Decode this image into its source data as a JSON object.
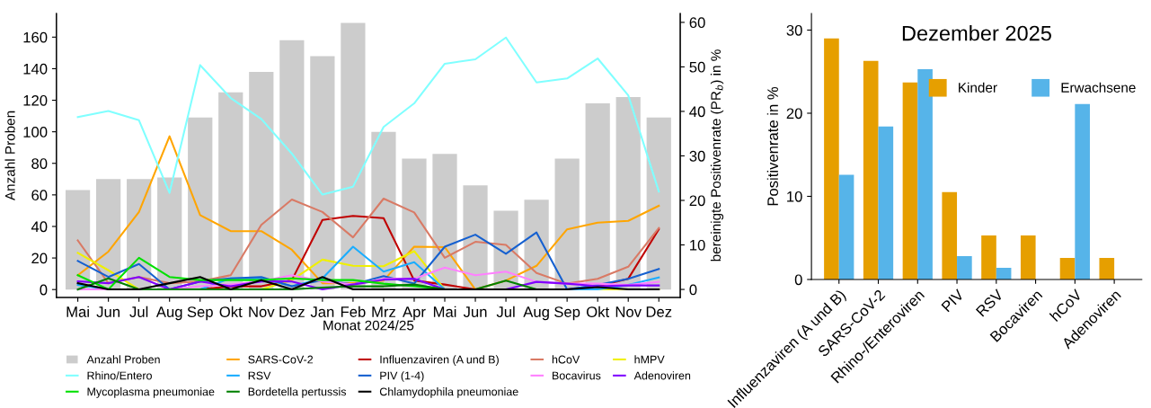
{
  "chart_data": [
    {
      "type": "bar",
      "xlabel": "Monat 2024/25",
      "ylabel": "Anzahl Proben",
      "y2label": "bereinigte Positivenrate (PR$_{b}$) in %",
      "categories": [
        "Mai",
        "Jun",
        "Jul",
        "Aug",
        "Sep",
        "Okt",
        "Nov",
        "Dez",
        "Jan",
        "Feb",
        "Mrz",
        "Apr",
        "Mai",
        "Jun",
        "Jul",
        "Aug",
        "Sep",
        "Okt",
        "Nov",
        "Dez"
      ],
      "ylim": [
        -5,
        175
      ],
      "yticks": [
        0,
        20,
        40,
        60,
        80,
        100,
        120,
        140,
        160
      ],
      "y2lim": [
        -1.8,
        62
      ],
      "y2ticks": [
        0,
        10,
        20,
        30,
        40,
        50,
        60
      ],
      "grid": false,
      "legend": "bottom",
      "series": [
        {
          "name": "Anzahl Proben",
          "type": "bar",
          "color": "#cccccc",
          "values": [
            63,
            70,
            70,
            71,
            109,
            125,
            138,
            158,
            148,
            169,
            100,
            83,
            86,
            66,
            50,
            57,
            83,
            118,
            122,
            109
          ]
        },
        {
          "name": "SARS-CoV-2",
          "type": "line",
          "axis": "y2",
          "color": "#ffa500",
          "values": [
            3.2,
            8.5,
            17.4,
            34.4,
            16.7,
            13.1,
            13.1,
            8.9,
            1.4,
            1.4,
            2.0,
            9.6,
            9.5,
            0,
            2.0,
            5.3,
            13.5,
            15.0,
            15.4,
            18.8
          ]
        },
        {
          "name": "Influenzaviren (A und B)",
          "type": "line",
          "axis": "y2",
          "color": "#c00000",
          "values": [
            null,
            null,
            null,
            0,
            0,
            0.7,
            0.7,
            2.1,
            15.6,
            16.5,
            16.0,
            2.0,
            1.1,
            0,
            0,
            0,
            0,
            0.7,
            2.4,
            13.5
          ]
        },
        {
          "name": "hCoV",
          "type": "line",
          "axis": "y2",
          "color": "#d97a65",
          "values": [
            11.0,
            1.4,
            2.8,
            1.4,
            1.8,
            3.2,
            14.5,
            20.2,
            17.4,
            11.7,
            20.4,
            17.3,
            7.1,
            10.7,
            10.0,
            3.7,
            1.3,
            2.4,
            5.1,
            13.8
          ]
        },
        {
          "name": "hMPV",
          "type": "line",
          "axis": "y2",
          "color": "#f0f000",
          "values": [
            8.2,
            4.3,
            0,
            0,
            0,
            0,
            0,
            2.1,
            6.7,
            5.3,
            5.2,
            8.6,
            0,
            0,
            0,
            0,
            0,
            0,
            0,
            0
          ]
        },
        {
          "name": "Rhino/Entero",
          "type": "line",
          "axis": "y2",
          "color": "#80ffff",
          "values": [
            38.7,
            40.1,
            38.0,
            21.7,
            50.4,
            43.0,
            38.3,
            30.5,
            21.3,
            23.1,
            36.5,
            41.8,
            50.7,
            51.7,
            56.6,
            46.5,
            47.4,
            51.9,
            43.6,
            22.0
          ]
        },
        {
          "name": "RSV",
          "type": "line",
          "axis": "y2",
          "color": "#1aadff",
          "values": [
            1.0,
            0,
            0,
            0,
            0,
            2.5,
            2.5,
            0.7,
            2.5,
            9.6,
            4.0,
            6.1,
            0,
            0,
            0,
            0,
            0,
            0,
            1.0,
            2.7
          ]
        },
        {
          "name": "PIV (1-4)",
          "type": "line",
          "axis": "y2",
          "color": "#1560d0",
          "values": [
            6.4,
            2.8,
            5.7,
            0,
            1.8,
            2.5,
            2.8,
            0.7,
            2.1,
            1.1,
            3.0,
            1.3,
            9.6,
            12.3,
            8.0,
            12.8,
            0,
            1.0,
            2.4,
            4.6
          ]
        },
        {
          "name": "Bocavirus",
          "type": "line",
          "axis": "y2",
          "color": "#ff80ff",
          "values": [
            0,
            0,
            0,
            0,
            0.7,
            1.1,
            1.8,
            3.2,
            1.8,
            1.1,
            2.4,
            2.4,
            4.9,
            3.2,
            4.0,
            1.7,
            1.3,
            1.3,
            1.0,
            1.7
          ]
        },
        {
          "name": "Adenoviren",
          "type": "line",
          "axis": "y2",
          "color": "#8000ff",
          "values": [
            1.8,
            1.4,
            2.8,
            0,
            1.8,
            0.7,
            1.8,
            1.8,
            0,
            1.1,
            2.2,
            2.4,
            0,
            0,
            0,
            1.7,
            1.3,
            0.7,
            0.9,
            0.9
          ]
        },
        {
          "name": "Mycoplasma pneumoniae",
          "type": "line",
          "axis": "y2",
          "color": "#00e000",
          "values": [
            3.2,
            0,
            7.1,
            2.8,
            2.1,
            2.1,
            2.1,
            2.5,
            2.1,
            2.1,
            1.3,
            0.7,
            0,
            0,
            null,
            null,
            null,
            null,
            null,
            null
          ]
        },
        {
          "name": "Bordetella pertussis",
          "type": "line",
          "axis": "y2",
          "color": "#008000",
          "values": [
            0,
            2.5,
            0,
            0,
            0,
            0,
            0,
            0,
            0.4,
            0.7,
            0.7,
            1.1,
            0,
            0,
            2.0,
            0,
            0,
            null,
            null,
            null
          ]
        },
        {
          "name": "Chlamydophila pneumoniae",
          "type": "line",
          "axis": "y2",
          "color": "#000000",
          "values": [
            1.4,
            0,
            0,
            1.4,
            2.8,
            0,
            2.1,
            0,
            2.8,
            0,
            0,
            0,
            0,
            0,
            0,
            0,
            0,
            0.5,
            0,
            0
          ]
        }
      ]
    },
    {
      "type": "bar",
      "title": "Dezember 2025",
      "ylabel": "Positivenrate in %",
      "categories": [
        "Influenzaviren (A und B)",
        "SARS-CoV-2",
        "Rhino-/Enteroviren",
        "PIV",
        "RSV",
        "Bocaviren",
        "hCoV",
        "Adenoviren"
      ],
      "ylim": [
        0,
        32
      ],
      "yticks": [
        0,
        10,
        20,
        30
      ],
      "grid": false,
      "legend": "top right",
      "series": [
        {
          "name": "Kinder",
          "color": "#e69f00",
          "values": [
            29.0,
            26.3,
            23.7,
            10.5,
            5.3,
            5.3,
            2.6,
            2.6
          ]
        },
        {
          "name": "Erwachsene",
          "color": "#56b4e9",
          "values": [
            12.6,
            18.4,
            25.3,
            2.8,
            1.4,
            0,
            21.1,
            0
          ]
        }
      ]
    }
  ]
}
